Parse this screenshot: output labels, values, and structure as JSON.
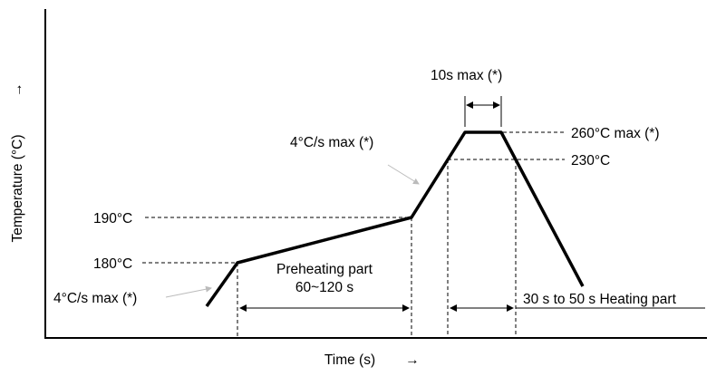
{
  "axes": {
    "y_label": "Temperature (°C)",
    "y_arrow": "→",
    "x_label": "Time (s)",
    "x_arrow": "→"
  },
  "labels": {
    "t180": "180°C",
    "t190": "190°C",
    "t230": "230°C",
    "t260": "260°C max (*)",
    "ramp1": "4°C/s max (*)",
    "ramp2": "4°C/s max (*)",
    "peak_time": "10s max (*)",
    "preheat_line1": "Preheating part",
    "preheat_line2": "60~120 s",
    "heating": "30 s to 50 s Heating part"
  }
}
